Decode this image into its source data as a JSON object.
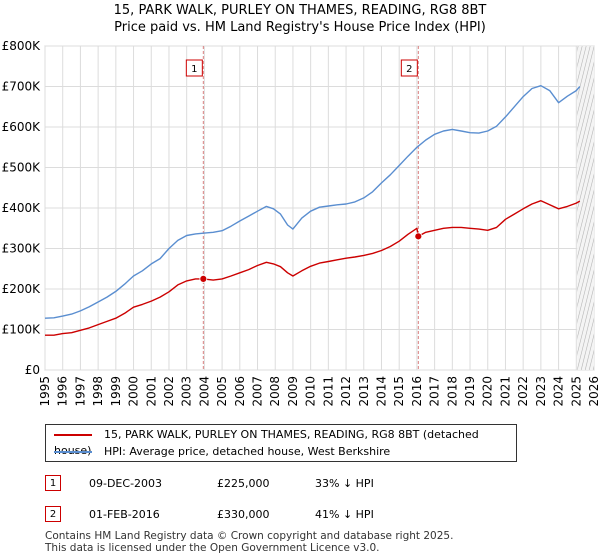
{
  "title": {
    "line1": "15, PARK WALK, PURLEY ON THAMES, READING, RG8 8BT",
    "line2": "Price paid vs. HM Land Registry's House Price Index (HPI)"
  },
  "chart_data": {
    "type": "line",
    "title": "15, PARK WALK, PURLEY ON THAMES, READING, RG8 8BT — Price paid vs. HM Land Registry's House Price Index (HPI)",
    "xlabel": "",
    "ylabel": "",
    "xlim": [
      1995,
      2026
    ],
    "ylim": [
      0,
      800000
    ],
    "x_ticks": [
      "1995",
      "1996",
      "1997",
      "1998",
      "1999",
      "2000",
      "2001",
      "2002",
      "2003",
      "2004",
      "2005",
      "2006",
      "2007",
      "2008",
      "2009",
      "2010",
      "2011",
      "2012",
      "2013",
      "2014",
      "2015",
      "2016",
      "2017",
      "2018",
      "2019",
      "2020",
      "2021",
      "2022",
      "2023",
      "2024",
      "2025",
      "2026"
    ],
    "y_ticks": [
      {
        "value": 0,
        "label": "£0"
      },
      {
        "value": 100000,
        "label": "£100K"
      },
      {
        "value": 200000,
        "label": "£200K"
      },
      {
        "value": 300000,
        "label": "£300K"
      },
      {
        "value": 400000,
        "label": "£400K"
      },
      {
        "value": 500000,
        "label": "£500K"
      },
      {
        "value": 600000,
        "label": "£600K"
      },
      {
        "value": 700000,
        "label": "£700K"
      },
      {
        "value": 800000,
        "label": "£800K"
      }
    ],
    "grid": true,
    "series": [
      {
        "name": "15, PARK WALK, PURLEY ON THAMES, READING, RG8 8BT (detached house)",
        "color": "#cc0000",
        "x": [
          1995.0,
          1995.5,
          1996.0,
          1996.5,
          1997.0,
          1997.5,
          1998.0,
          1998.5,
          1999.0,
          1999.5,
          2000.0,
          2000.5,
          2001.0,
          2001.5,
          2002.0,
          2002.5,
          2003.0,
          2003.5,
          2003.94,
          2004.5,
          2005.0,
          2005.5,
          2006.0,
          2006.5,
          2007.0,
          2007.5,
          2007.9,
          2008.3,
          2008.7,
          2009.0,
          2009.5,
          2010.0,
          2010.5,
          2011.0,
          2011.5,
          2012.0,
          2012.5,
          2013.0,
          2013.5,
          2014.0,
          2014.5,
          2015.0,
          2015.5,
          2016.0,
          2016.08,
          2016.5,
          2017.0,
          2017.5,
          2018.0,
          2018.5,
          2019.0,
          2019.5,
          2020.0,
          2020.5,
          2021.0,
          2021.5,
          2022.0,
          2022.5,
          2023.0,
          2023.5,
          2024.0,
          2024.5,
          2025.0,
          2025.2
        ],
        "y": [
          86000,
          86000,
          90000,
          92000,
          98000,
          104000,
          112000,
          120000,
          128000,
          140000,
          155000,
          162000,
          170000,
          180000,
          193000,
          210000,
          220000,
          225000,
          225000,
          222000,
          225000,
          232000,
          240000,
          248000,
          258000,
          266000,
          262000,
          255000,
          240000,
          232000,
          245000,
          256000,
          264000,
          268000,
          272000,
          276000,
          279000,
          283000,
          288000,
          295000,
          305000,
          318000,
          335000,
          350000,
          330000,
          340000,
          345000,
          350000,
          352000,
          352000,
          350000,
          348000,
          345000,
          352000,
          372000,
          385000,
          398000,
          410000,
          418000,
          408000,
          398000,
          404000,
          412000,
          417000
        ]
      },
      {
        "name": "HPI: Average price, detached house, West Berkshire",
        "color": "#5a8ed0",
        "x": [
          1995.0,
          1995.5,
          1996.0,
          1996.5,
          1997.0,
          1997.5,
          1998.0,
          1998.5,
          1999.0,
          1999.5,
          2000.0,
          2000.5,
          2001.0,
          2001.5,
          2002.0,
          2002.5,
          2003.0,
          2003.5,
          2004.0,
          2004.5,
          2005.0,
          2005.5,
          2006.0,
          2006.5,
          2007.0,
          2007.5,
          2007.9,
          2008.3,
          2008.7,
          2009.0,
          2009.5,
          2010.0,
          2010.5,
          2011.0,
          2011.5,
          2012.0,
          2012.5,
          2013.0,
          2013.5,
          2014.0,
          2014.5,
          2015.0,
          2015.5,
          2016.0,
          2016.5,
          2017.0,
          2017.5,
          2018.0,
          2018.5,
          2019.0,
          2019.5,
          2020.0,
          2020.5,
          2021.0,
          2021.5,
          2022.0,
          2022.5,
          2023.0,
          2023.5,
          2024.0,
          2024.5,
          2025.0,
          2025.2
        ],
        "y": [
          128000,
          129000,
          133000,
          138000,
          146000,
          156000,
          168000,
          180000,
          194000,
          212000,
          232000,
          245000,
          262000,
          275000,
          300000,
          320000,
          332000,
          336000,
          338000,
          340000,
          344000,
          355000,
          368000,
          380000,
          392000,
          404000,
          398000,
          385000,
          358000,
          348000,
          375000,
          392000,
          402000,
          405000,
          408000,
          410000,
          415000,
          425000,
          440000,
          462000,
          482000,
          505000,
          528000,
          550000,
          568000,
          582000,
          590000,
          594000,
          590000,
          586000,
          585000,
          590000,
          602000,
          625000,
          650000,
          675000,
          695000,
          702000,
          690000,
          660000,
          676000,
          690000,
          700000
        ]
      }
    ],
    "annotations": [
      {
        "label": "1",
        "x": 2003.94,
        "y": 225000
      },
      {
        "label": "2",
        "x": 2016.08,
        "y": 330000
      }
    ],
    "forecast_start": 2025.05
  },
  "legend": {
    "items": [
      {
        "label": "15, PARK WALK, PURLEY ON THAMES, READING, RG8 8BT (detached house)",
        "color": "#cc0000"
      },
      {
        "label": "HPI: Average price, detached house, West Berkshire",
        "color": "#5a8ed0"
      }
    ]
  },
  "transactions": [
    {
      "num": "1",
      "date": "09-DEC-2003",
      "price": "£225,000",
      "hpi": "33% ↓ HPI"
    },
    {
      "num": "2",
      "date": "01-FEB-2016",
      "price": "£330,000",
      "hpi": "41% ↓ HPI"
    }
  ],
  "footer": {
    "line1": "Contains HM Land Registry data © Crown copyright and database right 2025.",
    "line2": "This data is licensed under the Open Government Licence v3.0."
  }
}
